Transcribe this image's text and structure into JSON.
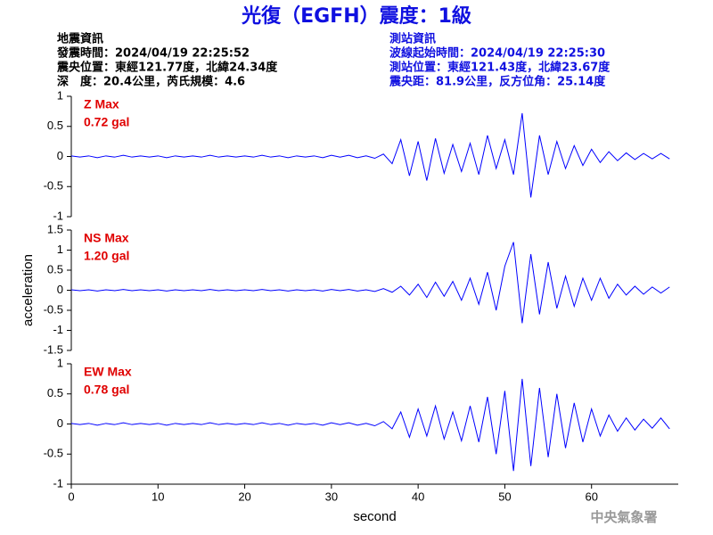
{
  "title": "光復（EGFH）震度：1級",
  "header": {
    "left": [
      "地震資訊",
      "發震時間：2024/04/19 22:25:52",
      "震央位置：東經121.77度，北緯24.34度",
      "深　度：20.4公里，芮氏規模：4.6"
    ],
    "right": [
      "測站資訊",
      "波線起始時間：2024/04/19 22:25:30",
      "測站位置：東經121.43度，北緯23.67度",
      "震央距：81.9公里，反方位角：25.14度"
    ]
  },
  "footer": "中央氣象署",
  "chart_data": [
    {
      "type": "line",
      "annotation": "Z Max",
      "max_label": "0.72 gal",
      "color": "#0000ff",
      "xlim": [
        0,
        70
      ],
      "ylim": [
        -1,
        1
      ],
      "yticks": [
        -1,
        -0.5,
        0,
        0.5,
        1
      ],
      "x": [
        0,
        1,
        2,
        3,
        4,
        5,
        6,
        7,
        8,
        9,
        10,
        11,
        12,
        13,
        14,
        15,
        16,
        17,
        18,
        19,
        20,
        21,
        22,
        23,
        24,
        25,
        26,
        27,
        28,
        29,
        30,
        31,
        32,
        33,
        34,
        35,
        36,
        37,
        38,
        39,
        40,
        41,
        42,
        43,
        44,
        45,
        46,
        47,
        48,
        49,
        50,
        51,
        52,
        53,
        54,
        55,
        56,
        57,
        58,
        59,
        60,
        61,
        62,
        63,
        64,
        65,
        66,
        67,
        68,
        69
      ],
      "values": [
        0.01,
        -0.01,
        0.01,
        -0.02,
        0.01,
        -0.01,
        0.02,
        -0.01,
        0.01,
        -0.01,
        0.01,
        -0.02,
        0.01,
        -0.01,
        0.01,
        -0.01,
        0.02,
        -0.01,
        0.01,
        -0.01,
        0.01,
        -0.01,
        0.02,
        -0.01,
        0.01,
        -0.02,
        0.01,
        -0.01,
        0.01,
        -0.02,
        0.02,
        -0.01,
        0.02,
        -0.02,
        0.01,
        -0.03,
        0.04,
        -0.12,
        0.28,
        -0.32,
        0.25,
        -0.4,
        0.3,
        -0.28,
        0.2,
        -0.25,
        0.22,
        -0.3,
        0.35,
        -0.2,
        0.28,
        -0.3,
        0.72,
        -0.68,
        0.35,
        -0.3,
        0.25,
        -0.2,
        0.18,
        -0.15,
        0.12,
        -0.1,
        0.08,
        -0.07,
        0.06,
        -0.05,
        0.05,
        -0.04,
        0.05,
        -0.04
      ]
    },
    {
      "type": "line",
      "annotation": "NS Max",
      "max_label": "1.20 gal",
      "color": "#0000ff",
      "ylabel": "acceleration",
      "xlim": [
        0,
        70
      ],
      "ylim": [
        -1.5,
        1.5
      ],
      "yticks": [
        -1.5,
        -1,
        -0.5,
        0,
        0.5,
        1,
        1.5
      ],
      "x": [
        0,
        1,
        2,
        3,
        4,
        5,
        6,
        7,
        8,
        9,
        10,
        11,
        12,
        13,
        14,
        15,
        16,
        17,
        18,
        19,
        20,
        21,
        22,
        23,
        24,
        25,
        26,
        27,
        28,
        29,
        30,
        31,
        32,
        33,
        34,
        35,
        36,
        37,
        38,
        39,
        40,
        41,
        42,
        43,
        44,
        45,
        46,
        47,
        48,
        49,
        50,
        51,
        52,
        53,
        54,
        55,
        56,
        57,
        58,
        59,
        60,
        61,
        62,
        63,
        64,
        65,
        66,
        67,
        68,
        69
      ],
      "values": [
        0.01,
        -0.01,
        0.01,
        -0.02,
        0.01,
        -0.01,
        0.02,
        -0.01,
        0.01,
        -0.01,
        0.01,
        -0.02,
        0.01,
        -0.01,
        0.01,
        -0.01,
        0.02,
        -0.01,
        0.01,
        -0.01,
        0.01,
        -0.01,
        0.02,
        -0.01,
        0.01,
        -0.02,
        0.01,
        -0.01,
        0.01,
        -0.02,
        0.02,
        -0.01,
        0.02,
        -0.02,
        0.01,
        -0.03,
        0.04,
        -0.05,
        0.1,
        -0.12,
        0.15,
        -0.18,
        0.2,
        -0.15,
        0.22,
        -0.25,
        0.3,
        -0.35,
        0.45,
        -0.5,
        0.6,
        1.2,
        -0.82,
        0.9,
        -0.6,
        0.7,
        -0.45,
        0.35,
        -0.4,
        0.3,
        -0.25,
        0.3,
        -0.2,
        0.15,
        -0.12,
        0.1,
        -0.1,
        0.08,
        -0.07,
        0.08
      ]
    },
    {
      "type": "line",
      "annotation": "EW Max",
      "max_label": "0.78 gal",
      "color": "#0000ff",
      "xlabel": "second",
      "xlim": [
        0,
        70
      ],
      "ylim": [
        -1,
        1
      ],
      "yticks": [
        -1,
        -0.5,
        0,
        0.5,
        1
      ],
      "xticks": [
        0,
        10,
        20,
        30,
        40,
        50,
        60
      ],
      "x": [
        0,
        1,
        2,
        3,
        4,
        5,
        6,
        7,
        8,
        9,
        10,
        11,
        12,
        13,
        14,
        15,
        16,
        17,
        18,
        19,
        20,
        21,
        22,
        23,
        24,
        25,
        26,
        27,
        28,
        29,
        30,
        31,
        32,
        33,
        34,
        35,
        36,
        37,
        38,
        39,
        40,
        41,
        42,
        43,
        44,
        45,
        46,
        47,
        48,
        49,
        50,
        51,
        52,
        53,
        54,
        55,
        56,
        57,
        58,
        59,
        60,
        61,
        62,
        63,
        64,
        65,
        66,
        67,
        68,
        69
      ],
      "values": [
        0.01,
        -0.01,
        0.01,
        -0.02,
        0.01,
        -0.01,
        0.02,
        -0.01,
        0.01,
        -0.01,
        0.01,
        -0.02,
        0.01,
        -0.01,
        0.01,
        -0.01,
        0.02,
        -0.01,
        0.01,
        -0.01,
        0.01,
        -0.01,
        0.02,
        -0.01,
        0.01,
        -0.02,
        0.01,
        -0.01,
        0.01,
        -0.02,
        0.02,
        -0.01,
        0.02,
        -0.02,
        0.01,
        -0.03,
        0.04,
        -0.08,
        0.2,
        -0.22,
        0.25,
        -0.2,
        0.3,
        -0.25,
        0.2,
        -0.28,
        0.3,
        -0.3,
        0.45,
        -0.5,
        0.55,
        -0.78,
        0.75,
        -0.7,
        0.6,
        -0.55,
        0.5,
        -0.4,
        0.35,
        -0.3,
        0.25,
        -0.2,
        0.15,
        -0.12,
        0.1,
        -0.1,
        0.08,
        -0.07,
        0.1,
        -0.08
      ]
    }
  ]
}
